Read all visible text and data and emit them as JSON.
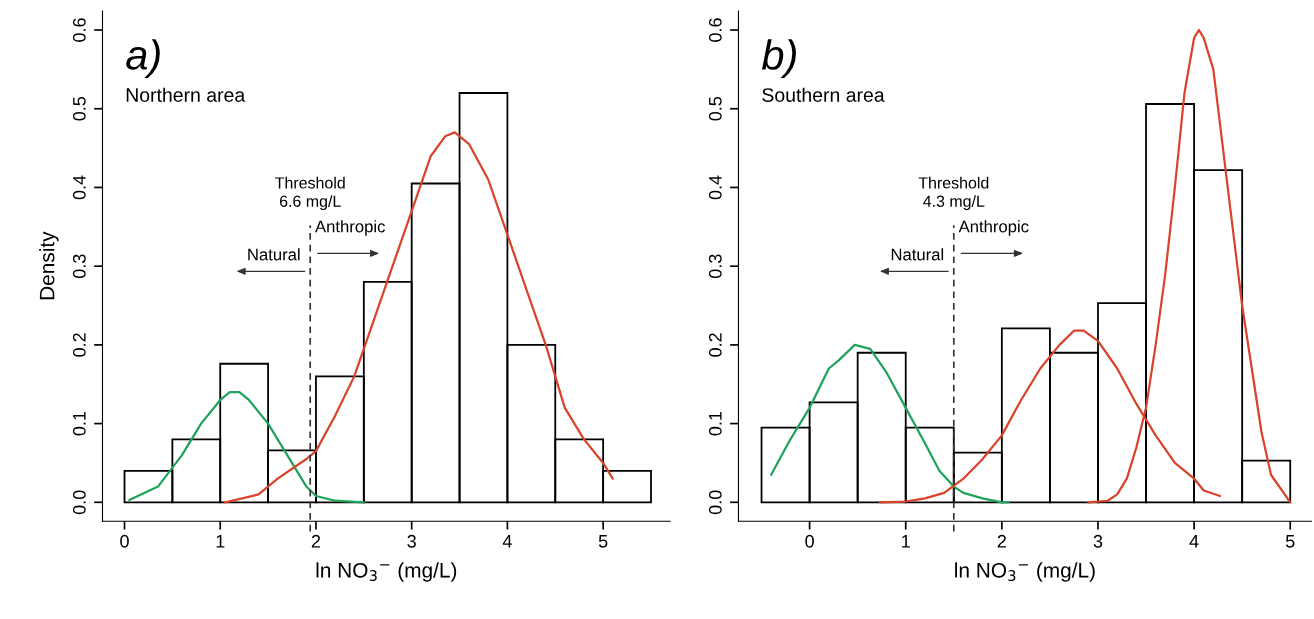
{
  "chart_data": [
    {
      "type": "histogram",
      "ylabel": "Density",
      "xlabel": "ln NO$_{3}$$^{−}$ (mg/L)",
      "bins": [
        0,
        0.5,
        1,
        1.5,
        2,
        2.5,
        3,
        3.5,
        4,
        4.5,
        5,
        5.5
      ],
      "values": [
        0.04,
        0.08,
        0.176,
        0.066,
        0.16,
        0.28,
        0.405,
        0.52,
        0.2,
        0.08,
        0.04
      ],
      "color": "#000000",
      "series": [
        {
          "type": "line",
          "color": "#1fa35c",
          "x": [
            0.05,
            0.35,
            0.6,
            0.8,
            1.0,
            1.1,
            1.2,
            1.3,
            1.5,
            1.7,
            1.9,
            2.0,
            2.2,
            2.5
          ],
          "values": [
            0.003,
            0.02,
            0.06,
            0.1,
            0.13,
            0.14,
            0.14,
            0.13,
            0.1,
            0.06,
            0.02,
            0.008,
            0.002,
            0.0
          ]
        },
        {
          "type": "line",
          "color": "#d9432b",
          "x": [
            1.05,
            1.4,
            1.6,
            1.9,
            2.0,
            2.2,
            2.4,
            2.6,
            2.8,
            3.0,
            3.2,
            3.35,
            3.45,
            3.6,
            3.8,
            4.0,
            4.2,
            4.4,
            4.6,
            4.8,
            5.0,
            5.1
          ],
          "values": [
            0.0,
            0.01,
            0.03,
            0.055,
            0.065,
            0.11,
            0.16,
            0.23,
            0.3,
            0.37,
            0.44,
            0.465,
            0.47,
            0.455,
            0.41,
            0.34,
            0.27,
            0.2,
            0.12,
            0.08,
            0.05,
            0.03
          ]
        }
      ],
      "xlim": [
        -0.23,
        5.7
      ],
      "ylim": [
        -0.024,
        0.624
      ],
      "xticks": [
        0,
        1,
        2,
        3,
        4,
        5
      ],
      "yticks": [
        {
          "value": 0,
          "label": "0.0"
        },
        {
          "value": 0.1,
          "label": "0.1"
        },
        {
          "value": 0.2,
          "label": "0.2"
        },
        {
          "value": 0.3,
          "label": "0.3"
        },
        {
          "value": 0.4,
          "label": "0.4"
        },
        {
          "value": 0.5,
          "label": "0.5"
        },
        {
          "value": 0.6,
          "label": "0.6"
        }
      ],
      "ref_lines": [
        {
          "axis": "x",
          "value": 1.94,
          "label": "Threshold\n6.6 mg/L",
          "color": "#333333",
          "line_style": "dashed"
        }
      ],
      "annotations": [
        "a)",
        "Northern area",
        "Natural",
        "Anthropic"
      ]
    },
    {
      "type": "histogram",
      "xlabel": "ln NO$_{3}$$^{−}$ (mg/L)",
      "bins": [
        -0.5,
        0,
        0.5,
        1,
        1.5,
        2,
        2.5,
        3,
        3.5,
        4,
        4.5,
        5
      ],
      "values": [
        0.095,
        0.127,
        0.19,
        0.095,
        0.063,
        0.221,
        0.19,
        0.253,
        0.506,
        0.422,
        0.053
      ],
      "color": "#000000",
      "series": [
        {
          "type": "line",
          "color": "#1fa35c",
          "x": [
            -0.4,
            -0.2,
            0.0,
            0.2,
            0.3,
            0.47,
            0.63,
            0.8,
            1.0,
            1.2,
            1.35,
            1.5,
            1.6,
            1.8,
            2.0,
            2.07
          ],
          "values": [
            0.035,
            0.08,
            0.12,
            0.17,
            0.18,
            0.2,
            0.195,
            0.165,
            0.12,
            0.075,
            0.04,
            0.02,
            0.012,
            0.005,
            0.0,
            0.0
          ]
        },
        {
          "type": "line",
          "color": "#d9432b",
          "x": [
            0.73,
            1.0,
            1.2,
            1.4,
            1.6,
            1.8,
            2.0,
            2.2,
            2.4,
            2.6,
            2.75,
            2.85,
            3.0,
            3.2,
            3.4,
            3.6,
            3.8,
            4.0,
            4.1,
            4.27
          ],
          "values": [
            0.0,
            0.001,
            0.005,
            0.012,
            0.03,
            0.055,
            0.085,
            0.13,
            0.17,
            0.2,
            0.218,
            0.218,
            0.205,
            0.17,
            0.125,
            0.085,
            0.05,
            0.03,
            0.015,
            0.008
          ]
        },
        {
          "type": "line",
          "color": "#d9432b",
          "x": [
            2.9,
            3.1,
            3.2,
            3.3,
            3.4,
            3.5,
            3.6,
            3.7,
            3.8,
            3.9,
            4.0,
            4.05,
            4.1,
            4.2,
            4.3,
            4.4,
            4.5,
            4.6,
            4.7,
            4.8,
            5.0
          ],
          "values": [
            0.0,
            0.002,
            0.01,
            0.03,
            0.07,
            0.12,
            0.2,
            0.29,
            0.4,
            0.52,
            0.59,
            0.6,
            0.59,
            0.55,
            0.45,
            0.35,
            0.25,
            0.17,
            0.09,
            0.035,
            0.0
          ]
        }
      ],
      "xlim": [
        -0.74,
        5.22
      ],
      "ylim": [
        -0.024,
        0.624
      ],
      "xticks": [
        0,
        1,
        2,
        3,
        4,
        5
      ],
      "yticks": [
        {
          "value": 0,
          "label": "0.0"
        },
        {
          "value": 0.1,
          "label": "0.1"
        },
        {
          "value": 0.2,
          "label": "0.2"
        },
        {
          "value": 0.3,
          "label": "0.3"
        },
        {
          "value": 0.4,
          "label": "0.4"
        },
        {
          "value": 0.5,
          "label": "0.5"
        },
        {
          "value": 0.6,
          "label": "0.6"
        }
      ],
      "ref_lines": [
        {
          "axis": "x",
          "value": 1.5,
          "label": "Threshold\n4.3 mg/L",
          "color": "#333333",
          "line_style": "dashed"
        }
      ],
      "annotations": [
        "b)",
        "Southern area",
        "Natural",
        "Anthropic"
      ]
    }
  ]
}
